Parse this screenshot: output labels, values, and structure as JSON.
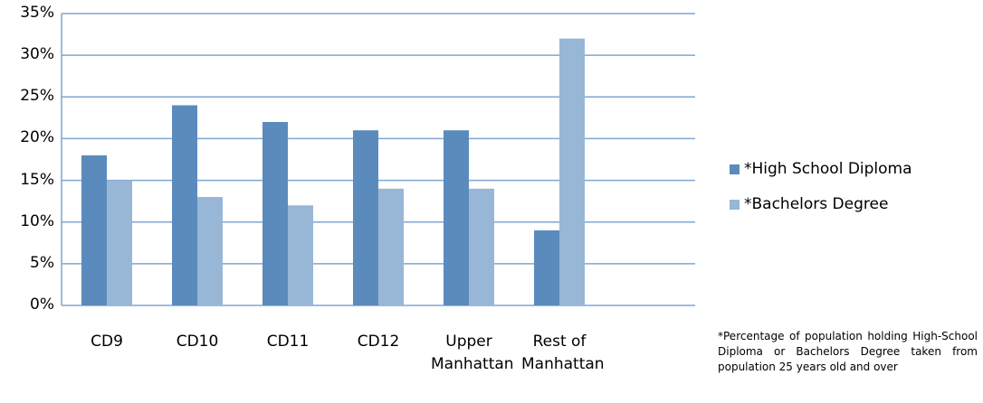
{
  "chart_data": {
    "type": "bar",
    "categories": [
      "CD9",
      "CD10",
      "CD11",
      "CD12",
      "Upper Manhattan",
      "Rest of Manhattan",
      null
    ],
    "series": [
      {
        "name": "*High School Diploma",
        "color": "#5b8bbd",
        "values": [
          18,
          24,
          22,
          21,
          21,
          9,
          null
        ]
      },
      {
        "name": "*Bachelors Degree",
        "color": "#98b6d6",
        "values": [
          15,
          13,
          12,
          14,
          14,
          32,
          null
        ]
      }
    ],
    "ylim": [
      0,
      35
    ],
    "yticks": [
      {
        "value": 0,
        "label": "0%"
      },
      {
        "value": 5,
        "label": "5%"
      },
      {
        "value": 10,
        "label": "10%"
      },
      {
        "value": 15,
        "label": "15%"
      },
      {
        "value": 20,
        "label": "20%"
      },
      {
        "value": 25,
        "label": "25%"
      },
      {
        "value": 30,
        "label": "30%"
      },
      {
        "value": 35,
        "label": "35%"
      }
    ],
    "grid": true,
    "legend": "right",
    "note": "*Percentage of population holding High-School Diploma or Bachelors Degree taken from population 25 years old and over"
  }
}
